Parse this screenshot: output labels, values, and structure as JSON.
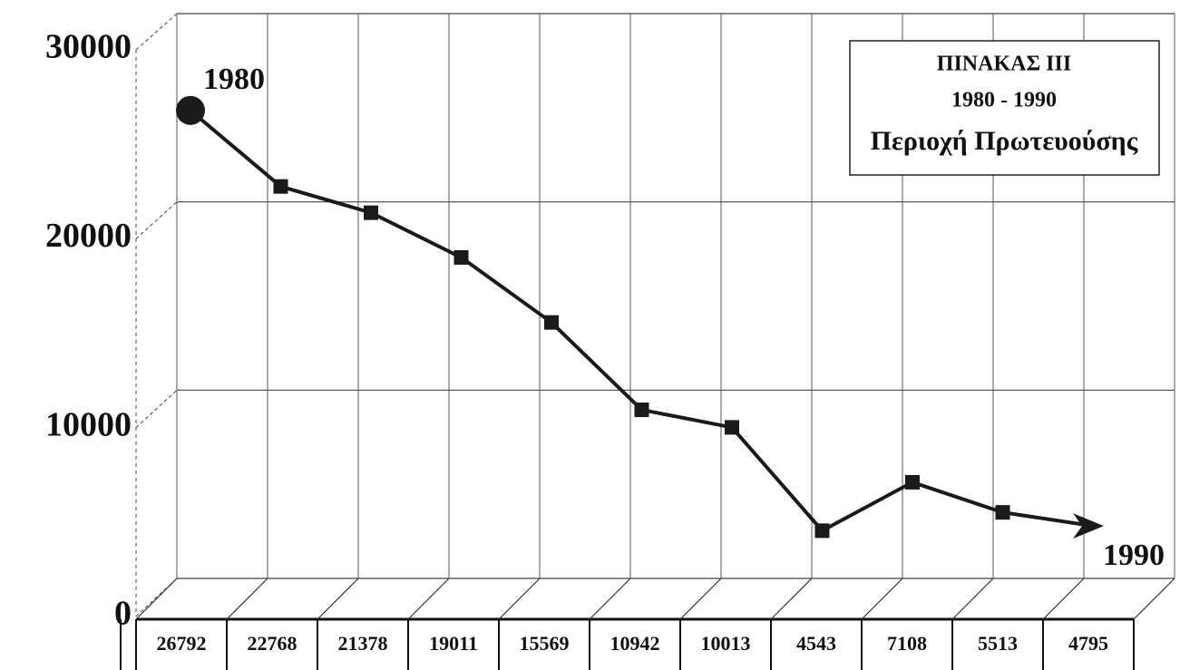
{
  "chart_data": {
    "type": "line",
    "title": "ΠΙΝΑΚΑΣ ΙΙΙ",
    "subtitle": "1980 - 1990",
    "region": "Περιοχή Πρωτευούσης",
    "annotations": [
      "1980",
      "1990"
    ],
    "values": [
      26792,
      22768,
      21378,
      19011,
      15569,
      10942,
      10013,
      4543,
      7108,
      5513,
      4795
    ],
    "color": "#1a1a1a",
    "ylim": [
      0,
      30000
    ],
    "yticks": [
      0,
      10000,
      20000,
      30000
    ],
    "grid": true
  }
}
